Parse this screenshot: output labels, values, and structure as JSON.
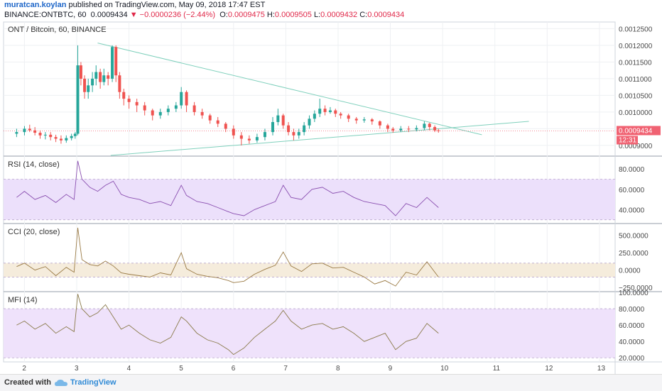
{
  "header": {
    "author": "muratcan.koylan",
    "published_text": "published on TradingView.com, May 09, 2018 17:47 EST",
    "symbol_line": "BINANCE:ONTBTC, 60",
    "last": "0.0009434",
    "change": "−0.0000236 (−2.44%)",
    "o_label": "O:",
    "o_val": "0.0009475",
    "h_label": "H:",
    "h_val": "0.0009505",
    "l_label": "L:",
    "l_val": "0.0009432",
    "c_label": "C:",
    "c_val": "0.0009434"
  },
  "footer": {
    "created": "Created with",
    "brand": "TradingView"
  },
  "colors": {
    "up": "#26a69a",
    "down": "#ef5350",
    "wickLine": "#555555",
    "trend": "#7fd0bc",
    "rsiBand": "#ece0fb",
    "cciBand": "#f5ecdc",
    "mfiBand": "#efe2fb",
    "rsiLine": "#8a4fb0",
    "cciLine": "#9a7a44",
    "mfiLine": "#8a7a4a",
    "priceTag": "#f06272"
  },
  "chart_data": [
    {
      "type": "candlestick",
      "title": "ONT / Bitcoin, 60, BINANCE",
      "x_ticks": [
        "2",
        "3",
        "4",
        "5",
        "6",
        "7",
        "8",
        "9",
        "10",
        "11",
        "12",
        "13"
      ],
      "y_ticks": [
        "0.0012500",
        "0.0012000",
        "0.0011500",
        "0.0011000",
        "0.0010500",
        "0.0010000",
        "0.0009500",
        "0.0009000"
      ],
      "ylim": [
        0.00087,
        0.00127
      ],
      "last_price_label": "0.0009434",
      "countdown": "12:31",
      "trendlines": [
        {
          "from": [
            3.4,
            0.001207
          ],
          "to": [
            10.75,
            0.000932
          ]
        },
        {
          "from": [
            3.65,
            0.00087
          ],
          "to": [
            11.65,
            0.000972
          ]
        }
      ],
      "candles": [
        [
          1.85,
          0.000935,
          0.00094,
          0.000925,
          0.00095
        ],
        [
          2.0,
          0.00094,
          0.00095,
          0.00093,
          0.000958
        ],
        [
          2.1,
          0.00095,
          0.000945,
          0.00094,
          0.000962
        ],
        [
          2.2,
          0.000945,
          0.000938,
          0.00093,
          0.000955
        ],
        [
          2.3,
          0.000938,
          0.00093,
          0.00092,
          0.000945
        ],
        [
          2.4,
          0.00093,
          0.000932,
          0.000918,
          0.00094
        ],
        [
          2.5,
          0.000932,
          0.000925,
          0.000915,
          0.00094
        ],
        [
          2.6,
          0.000925,
          0.00092,
          0.00091,
          0.000932
        ],
        [
          2.7,
          0.00092,
          0.000915,
          0.000905,
          0.00093
        ],
        [
          2.8,
          0.000915,
          0.000922,
          0.000908,
          0.00093
        ],
        [
          2.9,
          0.000922,
          0.000928,
          0.000915,
          0.000935
        ],
        [
          2.97,
          0.000928,
          0.000935,
          0.00092,
          0.00094
        ],
        [
          3.02,
          0.000935,
          0.00114,
          0.00093,
          0.0012
        ],
        [
          3.08,
          0.00114,
          0.0011,
          0.00108,
          0.00115
        ],
        [
          3.15,
          0.0011,
          0.00106,
          0.00104,
          0.00111
        ],
        [
          3.22,
          0.00106,
          0.00108,
          0.00104,
          0.0011
        ],
        [
          3.3,
          0.00108,
          0.0011,
          0.00106,
          0.00112
        ],
        [
          3.37,
          0.0011,
          0.00112,
          0.00108,
          0.00114
        ],
        [
          3.45,
          0.00112,
          0.00109,
          0.00107,
          0.00113
        ],
        [
          3.52,
          0.00109,
          0.00111,
          0.00108,
          0.00113
        ],
        [
          3.6,
          0.00111,
          0.0011,
          0.00108,
          0.00112
        ],
        [
          3.68,
          0.0011,
          0.001195,
          0.00109,
          0.0012
        ],
        [
          3.75,
          0.001195,
          0.00111,
          0.00109,
          0.0012
        ],
        [
          3.82,
          0.00111,
          0.00106,
          0.00104,
          0.00112
        ],
        [
          3.9,
          0.00106,
          0.00104,
          0.00102,
          0.00107
        ],
        [
          4.0,
          0.00104,
          0.00103,
          0.00101,
          0.00105
        ],
        [
          4.15,
          0.00103,
          0.00102,
          0.001,
          0.00104
        ],
        [
          4.3,
          0.00102,
          0.001005,
          0.00099,
          0.00103
        ],
        [
          4.45,
          0.001005,
          0.00099,
          0.000975,
          0.00101
        ],
        [
          4.6,
          0.00099,
          0.001,
          0.00098,
          0.00101
        ],
        [
          4.75,
          0.001,
          0.00101,
          0.00099,
          0.00102
        ],
        [
          4.9,
          0.00101,
          0.00102,
          0.001,
          0.00103
        ],
        [
          5.0,
          0.00102,
          0.00106,
          0.00101,
          0.001075
        ],
        [
          5.1,
          0.00106,
          0.00102,
          0.001,
          0.001065
        ],
        [
          5.25,
          0.00102,
          0.001,
          0.00099,
          0.00103
        ],
        [
          5.4,
          0.001,
          0.00099,
          0.00098,
          0.00101
        ],
        [
          5.55,
          0.00099,
          0.000975,
          0.000965,
          0.000995
        ],
        [
          5.7,
          0.000975,
          0.000965,
          0.000955,
          0.000985
        ],
        [
          5.85,
          0.000965,
          0.00095,
          0.00094,
          0.00097
        ],
        [
          6.0,
          0.00095,
          0.00093,
          0.00092,
          0.00096
        ],
        [
          6.15,
          0.00093,
          0.00092,
          0.0009,
          0.00094
        ],
        [
          6.3,
          0.00092,
          0.000915,
          0.000905,
          0.00093
        ],
        [
          6.45,
          0.000915,
          0.000925,
          0.000908,
          0.000935
        ],
        [
          6.6,
          0.000925,
          0.00094,
          0.000915,
          0.00095
        ],
        [
          6.75,
          0.00094,
          0.00097,
          0.00093,
          0.000985
        ],
        [
          6.85,
          0.00097,
          0.00099,
          0.00096,
          0.00101
        ],
        [
          6.95,
          0.00099,
          0.00096,
          0.00095,
          0.000995
        ],
        [
          7.05,
          0.00096,
          0.00094,
          0.00093,
          0.00097
        ],
        [
          7.15,
          0.00094,
          0.00093,
          0.000915,
          0.00095
        ],
        [
          7.25,
          0.00093,
          0.00094,
          0.00092,
          0.00095
        ],
        [
          7.35,
          0.00094,
          0.00096,
          0.00093,
          0.00097
        ],
        [
          7.45,
          0.00096,
          0.00098,
          0.00095,
          0.00099
        ],
        [
          7.55,
          0.00098,
          0.000995,
          0.00097,
          0.001005
        ],
        [
          7.65,
          0.000995,
          0.00101,
          0.000985,
          0.00104
        ],
        [
          7.75,
          0.00101,
          0.001,
          0.00099,
          0.00102
        ],
        [
          7.85,
          0.001,
          0.001005,
          0.000995,
          0.001015
        ],
        [
          7.95,
          0.001005,
          0.000995,
          0.000985,
          0.00101
        ],
        [
          8.05,
          0.000995,
          0.00099,
          0.00098,
          0.001
        ],
        [
          8.2,
          0.00099,
          0.00098,
          0.00097,
          0.000995
        ],
        [
          8.35,
          0.00098,
          0.000975,
          0.000965,
          0.000985
        ],
        [
          8.5,
          0.000975,
          0.000978,
          0.000968,
          0.000985
        ],
        [
          8.65,
          0.000978,
          0.000972,
          0.000962,
          0.000982
        ],
        [
          8.8,
          0.000972,
          0.00096,
          0.00095,
          0.000975
        ],
        [
          8.95,
          0.00096,
          0.00095,
          0.00094,
          0.000965
        ],
        [
          9.05,
          0.00095,
          0.000945,
          0.000938,
          0.000955
        ],
        [
          9.2,
          0.000945,
          0.00095,
          0.00094,
          0.000958
        ],
        [
          9.35,
          0.00095,
          0.000948,
          0.00094,
          0.000958
        ],
        [
          9.5,
          0.000948,
          0.000952,
          0.000942,
          0.00096
        ],
        [
          9.65,
          0.000952,
          0.000965,
          0.000945,
          0.000972
        ],
        [
          9.75,
          0.000965,
          0.000955,
          0.000945,
          0.000968
        ],
        [
          9.85,
          0.000955,
          0.000945,
          0.00094,
          0.00096
        ],
        [
          9.92,
          0.000945,
          0.000943,
          0.000938,
          0.00095
        ]
      ]
    },
    {
      "type": "line",
      "title": "RSI (14, close)",
      "y_ticks": [
        "80.0000",
        "60.0000",
        "40.0000"
      ],
      "ylim": [
        27,
        92
      ],
      "band": [
        30,
        70
      ],
      "x": [
        1.85,
        2.0,
        2.2,
        2.4,
        2.6,
        2.8,
        2.95,
        3.02,
        3.1,
        3.25,
        3.4,
        3.55,
        3.7,
        3.85,
        4.0,
        4.2,
        4.4,
        4.6,
        4.8,
        5.0,
        5.1,
        5.3,
        5.5,
        5.7,
        5.9,
        6.0,
        6.2,
        6.4,
        6.6,
        6.8,
        6.95,
        7.1,
        7.3,
        7.5,
        7.7,
        7.9,
        8.1,
        8.3,
        8.5,
        8.7,
        8.9,
        9.1,
        9.3,
        9.5,
        9.7,
        9.92
      ],
      "values": [
        52,
        58,
        50,
        54,
        47,
        55,
        50,
        88,
        70,
        62,
        58,
        64,
        68,
        55,
        52,
        50,
        46,
        48,
        44,
        64,
        54,
        48,
        46,
        42,
        38,
        36,
        34,
        40,
        44,
        48,
        64,
        52,
        50,
        60,
        62,
        56,
        58,
        52,
        48,
        46,
        44,
        34,
        46,
        42,
        52,
        42
      ]
    },
    {
      "type": "line",
      "title": "CCI (20, close)",
      "y_ticks": [
        "500.0000",
        "250.0000",
        "0.0000",
        "−250.0000"
      ],
      "ylim": [
        -300,
        660
      ],
      "band": [
        -100,
        100
      ],
      "x": [
        1.85,
        2.0,
        2.2,
        2.4,
        2.6,
        2.8,
        2.95,
        3.02,
        3.1,
        3.25,
        3.4,
        3.55,
        3.7,
        3.85,
        4.0,
        4.2,
        4.4,
        4.6,
        4.8,
        5.0,
        5.1,
        5.3,
        5.5,
        5.7,
        5.9,
        6.0,
        6.2,
        6.4,
        6.6,
        6.8,
        6.95,
        7.1,
        7.3,
        7.5,
        7.7,
        7.9,
        8.1,
        8.3,
        8.5,
        8.7,
        8.9,
        9.1,
        9.3,
        9.5,
        9.7,
        9.92
      ],
      "values": [
        50,
        100,
        0,
        50,
        -80,
        40,
        -30,
        610,
        150,
        80,
        60,
        130,
        60,
        -40,
        -60,
        -80,
        -100,
        -40,
        -70,
        250,
        20,
        -60,
        -90,
        -110,
        -150,
        -180,
        -160,
        -60,
        10,
        70,
        260,
        60,
        -20,
        90,
        100,
        30,
        40,
        -30,
        -100,
        -200,
        -150,
        -230,
        -30,
        -70,
        120,
        -100
      ]
    },
    {
      "type": "line",
      "title": "MFI (14)",
      "y_ticks": [
        "100.0000",
        "80.0000",
        "60.0000",
        "40.0000",
        "20.0000"
      ],
      "ylim": [
        15,
        100
      ],
      "band": [
        20,
        80
      ],
      "x": [
        1.85,
        2.0,
        2.2,
        2.4,
        2.6,
        2.8,
        2.95,
        3.02,
        3.1,
        3.25,
        3.4,
        3.55,
        3.7,
        3.85,
        4.0,
        4.2,
        4.4,
        4.6,
        4.8,
        5.0,
        5.1,
        5.3,
        5.5,
        5.7,
        5.9,
        6.0,
        6.2,
        6.4,
        6.6,
        6.8,
        6.95,
        7.1,
        7.3,
        7.5,
        7.7,
        7.9,
        8.1,
        8.3,
        8.5,
        8.7,
        8.9,
        9.1,
        9.3,
        9.5,
        9.7,
        9.92
      ],
      "values": [
        60,
        65,
        55,
        62,
        50,
        58,
        52,
        98,
        80,
        70,
        75,
        85,
        70,
        55,
        60,
        50,
        42,
        38,
        45,
        70,
        65,
        50,
        42,
        38,
        30,
        24,
        32,
        45,
        55,
        65,
        78,
        65,
        55,
        60,
        62,
        55,
        58,
        50,
        40,
        45,
        50,
        30,
        40,
        44,
        62,
        50
      ]
    }
  ]
}
